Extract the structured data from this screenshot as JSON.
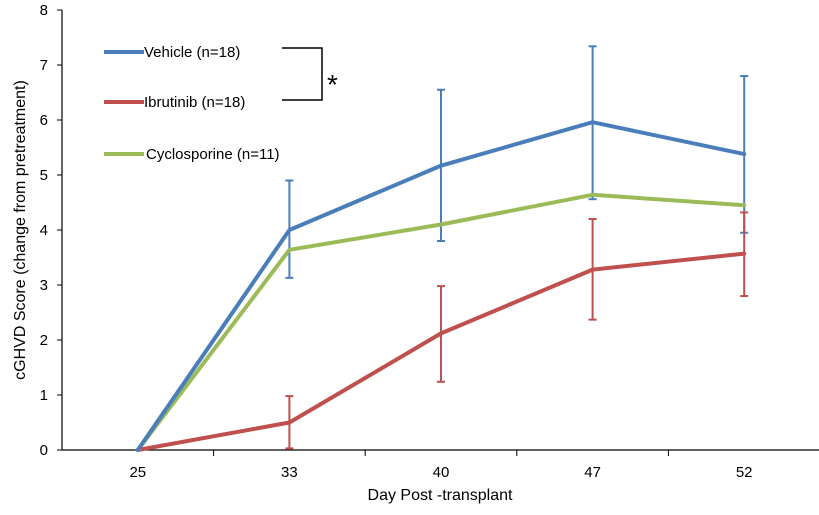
{
  "chart_data": {
    "type": "line",
    "title": "",
    "xlabel": "Day Post -transplant",
    "ylabel": "cGHVD Score (change from pretreatment)",
    "categories": [
      "25",
      "33",
      "40",
      "47",
      "52"
    ],
    "ylim": [
      0,
      8
    ],
    "yticks": [
      "0",
      "1",
      "2",
      "3",
      "4",
      "5",
      "6",
      "7",
      "8"
    ],
    "grid": false,
    "legend_position": "top-left",
    "significance_marker": "*",
    "series": [
      {
        "name": "Vehicle (n=18)",
        "color": "#4a7ebb",
        "values": [
          0,
          4.0,
          5.17,
          5.96,
          5.38
        ],
        "error_upper": [
          null,
          4.9,
          6.55,
          7.34,
          6.8
        ],
        "error_lower": [
          null,
          3.13,
          3.8,
          4.56,
          3.95
        ],
        "has_error_bars": true
      },
      {
        "name": "Ibrutinib (n=18)",
        "color": "#c0504d",
        "values": [
          0,
          0.5,
          2.12,
          3.28,
          3.57
        ],
        "error_upper": [
          null,
          0.98,
          2.98,
          4.2,
          4.32
        ],
        "error_lower": [
          null,
          0.03,
          1.24,
          2.37,
          2.8
        ],
        "has_error_bars": true
      },
      {
        "name": "Cyclosporine (n=11)",
        "color": "#9bbb59",
        "values": [
          0,
          3.64,
          4.1,
          4.64,
          4.45
        ],
        "has_error_bars": false
      }
    ]
  }
}
